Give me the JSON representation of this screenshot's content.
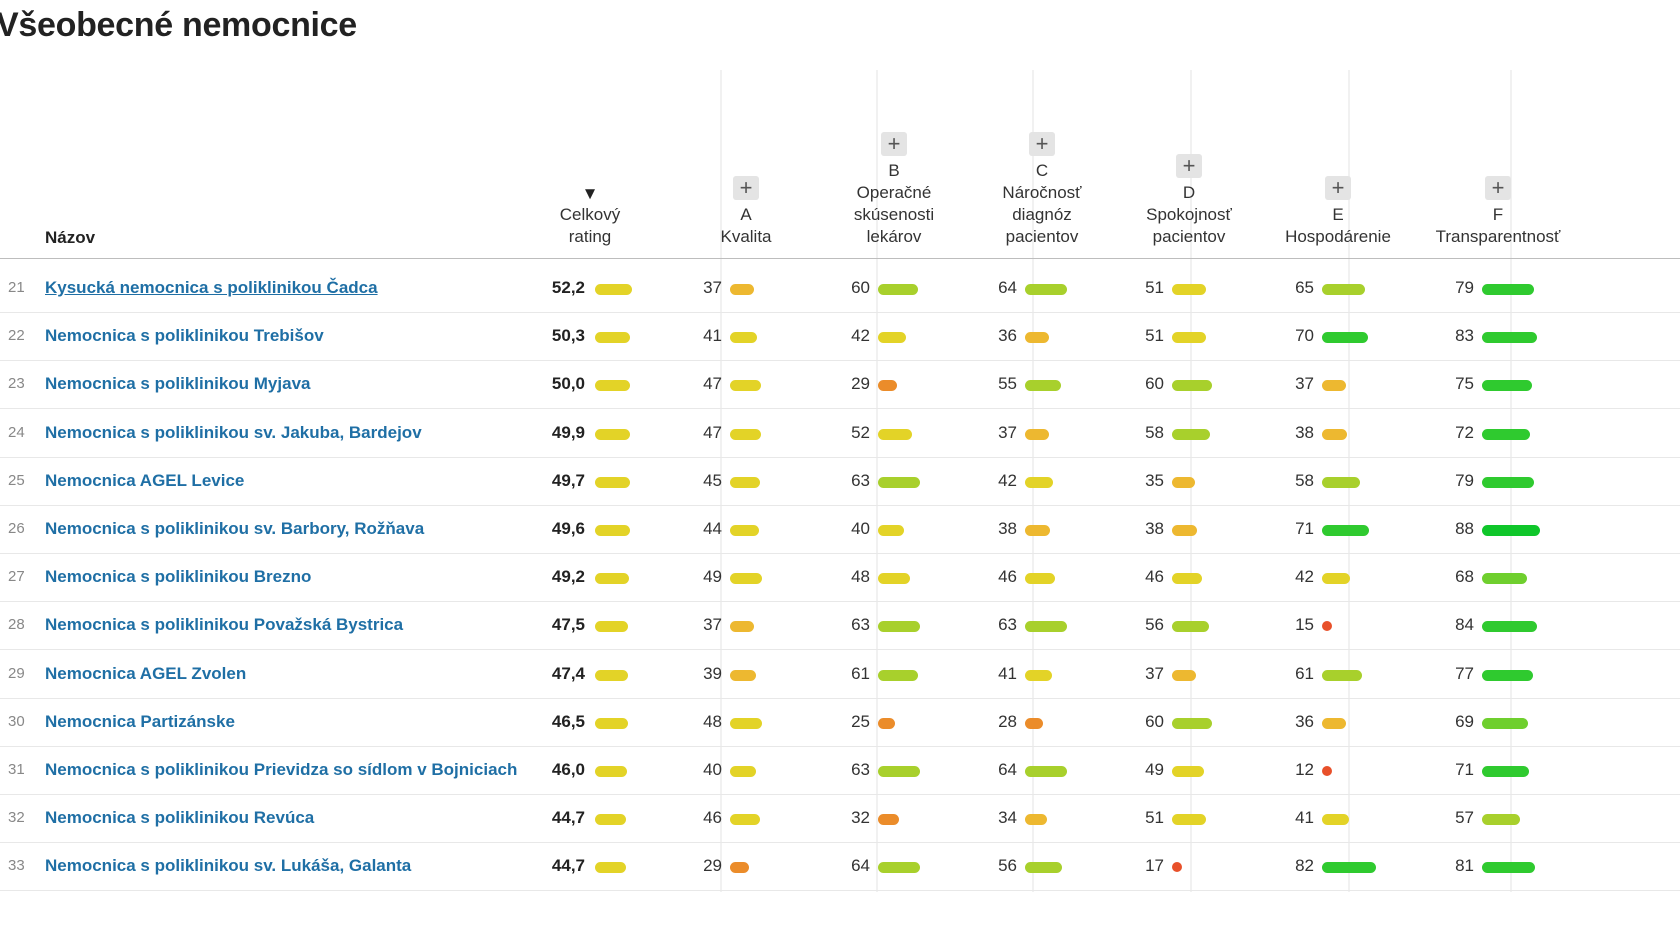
{
  "title": "Všeobecné nemocnice",
  "header": {
    "name": "Názov",
    "sort_indicator": "▼",
    "plus_icon": "+",
    "columns": [
      {
        "key": "total",
        "lines": [
          "Celkový",
          "rating"
        ],
        "expandable": false,
        "sorted": true
      },
      {
        "key": "a",
        "lines": [
          "A",
          "Kvalita"
        ],
        "expandable": true
      },
      {
        "key": "b",
        "lines": [
          "B",
          "Operačné",
          "skúsenosti",
          "lekárov"
        ],
        "expandable": true
      },
      {
        "key": "c",
        "lines": [
          "C",
          "Náročnosť",
          "diagnóz",
          "pacientov"
        ],
        "expandable": true
      },
      {
        "key": "d",
        "lines": [
          "D",
          "Spokojnosť",
          "pacientov"
        ],
        "expandable": true
      },
      {
        "key": "e",
        "lines": [
          "E",
          "Hospodárenie"
        ],
        "expandable": true
      },
      {
        "key": "f",
        "lines": [
          "F",
          "Transparentnosť"
        ],
        "expandable": true
      }
    ]
  },
  "colors": {
    "link": "#1f6fa5",
    "bar_red": "#e8502a",
    "bar_orange": "#eb8c2a",
    "bar_amber": "#edb830",
    "bar_yellow": "#e3d327",
    "bar_lime": "#a8d02c",
    "bar_lightgreen": "#6fcf2e",
    "bar_green": "#2fca2f",
    "bar_brightgreen": "#0fc62a"
  },
  "rows": [
    {
      "rank": "21",
      "name": "Kysucká nemocnica s poliklinikou Čadca",
      "total": "52,2",
      "total_value": 52.2,
      "a": 37,
      "b": 60,
      "c": 64,
      "d": 51,
      "e": 65,
      "f": 79,
      "underline": true
    },
    {
      "rank": "22",
      "name": "Nemocnica s poliklinikou Trebišov",
      "total": "50,3",
      "total_value": 50.3,
      "a": 41,
      "b": 42,
      "c": 36,
      "d": 51,
      "e": 70,
      "f": 83
    },
    {
      "rank": "23",
      "name": "Nemocnica s poliklinikou Myjava",
      "total": "50,0",
      "total_value": 50.0,
      "a": 47,
      "b": 29,
      "c": 55,
      "d": 60,
      "e": 37,
      "f": 75
    },
    {
      "rank": "24",
      "name": "Nemocnica s poliklinikou sv. Jakuba, Bardejov",
      "total": "49,9",
      "total_value": 49.9,
      "a": 47,
      "b": 52,
      "c": 37,
      "d": 58,
      "e": 38,
      "f": 72
    },
    {
      "rank": "25",
      "name": "Nemocnica AGEL Levice",
      "total": "49,7",
      "total_value": 49.7,
      "a": 45,
      "b": 63,
      "c": 42,
      "d": 35,
      "e": 58,
      "f": 79
    },
    {
      "rank": "26",
      "name": "Nemocnica s poliklinikou sv. Barbory, Rožňava",
      "total": "49,6",
      "total_value": 49.6,
      "a": 44,
      "b": 40,
      "c": 38,
      "d": 38,
      "e": 71,
      "f": 88
    },
    {
      "rank": "27",
      "name": "Nemocnica s poliklinikou Brezno",
      "total": "49,2",
      "total_value": 49.2,
      "a": 49,
      "b": 48,
      "c": 46,
      "d": 46,
      "e": 42,
      "f": 68
    },
    {
      "rank": "28",
      "name": "Nemocnica s poliklinikou Považská Bystrica",
      "total": "47,5",
      "total_value": 47.5,
      "a": 37,
      "b": 63,
      "c": 63,
      "d": 56,
      "e": 15,
      "f": 84
    },
    {
      "rank": "29",
      "name": "Nemocnica AGEL Zvolen",
      "total": "47,4",
      "total_value": 47.4,
      "a": 39,
      "b": 61,
      "c": 41,
      "d": 37,
      "e": 61,
      "f": 77
    },
    {
      "rank": "30",
      "name": "Nemocnica Partizánske",
      "total": "46,5",
      "total_value": 46.5,
      "a": 48,
      "b": 25,
      "c": 28,
      "d": 60,
      "e": 36,
      "f": 69
    },
    {
      "rank": "31",
      "name": "Nemocnica s poliklinikou Prievidza so sídlom v Bojniciach",
      "total": "46,0",
      "total_value": 46.0,
      "a": 40,
      "b": 63,
      "c": 64,
      "d": 49,
      "e": 12,
      "f": 71
    },
    {
      "rank": "32",
      "name": "Nemocnica s poliklinikou Revúca",
      "total": "44,7",
      "total_value": 44.7,
      "a": 46,
      "b": 32,
      "c": 34,
      "d": 51,
      "e": 41,
      "f": 57
    },
    {
      "rank": "33",
      "name": "Nemocnica s poliklinikou sv. Lukáša, Galanta",
      "total": "44,7",
      "total_value": 44.7,
      "a": 29,
      "b": 64,
      "c": 56,
      "d": 17,
      "e": 82,
      "f": 81
    }
  ]
}
